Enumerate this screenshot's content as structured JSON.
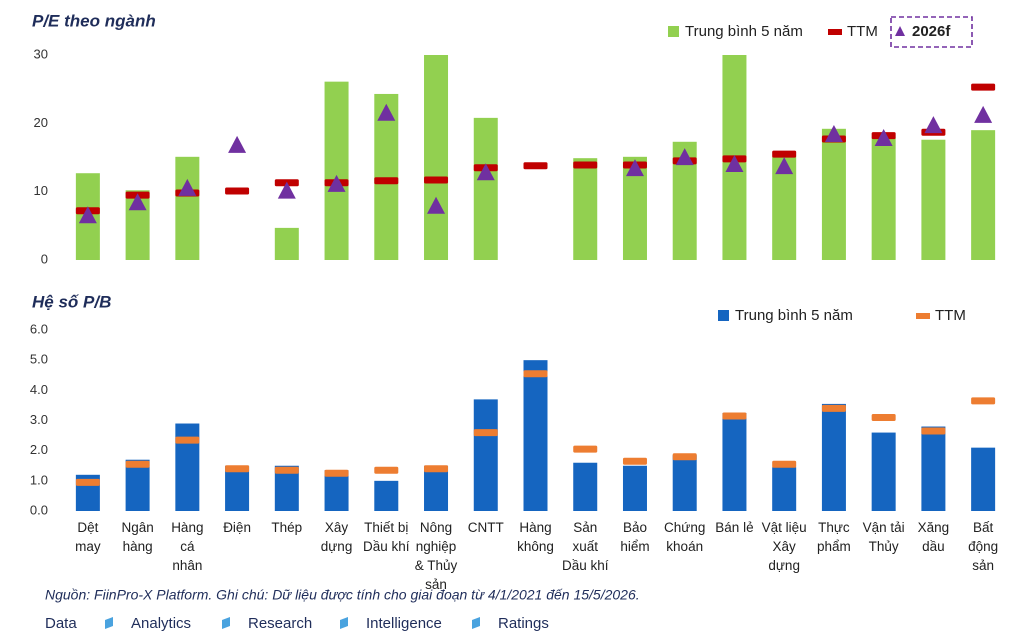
{
  "chart_data": [
    {
      "type": "bar",
      "title": "P/E theo ngành",
      "ylim": [
        0,
        30
      ],
      "yticks": [
        0,
        10,
        20,
        30
      ],
      "grid": false,
      "series": [
        {
          "name": "Trung bình 5 năm",
          "color": "#92d050",
          "marker": "bar",
          "values": [
            12.7,
            10.2,
            15.1,
            null,
            4.7,
            26.1,
            24.3,
            30,
            20.8,
            null,
            14.9,
            15.1,
            17.3,
            30,
            15.1,
            19.2,
            17.9,
            17.6,
            19.0
          ]
        },
        {
          "name": "TTM",
          "color": "#c00000",
          "marker": "dash",
          "values": [
            7.2,
            9.5,
            9.8,
            10.1,
            11.3,
            11.3,
            11.6,
            11.7,
            13.5,
            13.8,
            13.9,
            13.9,
            14.5,
            14.8,
            15.5,
            17.7,
            18.2,
            18.7,
            25.3
          ]
        },
        {
          "name": "2026f",
          "color": "#7030a0",
          "marker": "triangle",
          "values": [
            6.4,
            8.3,
            10.4,
            16.7,
            10.0,
            11.0,
            21.4,
            7.8,
            12.7,
            null,
            null,
            13.3,
            14.9,
            13.9,
            13.6,
            18.3,
            17.7,
            19.6,
            21.1
          ]
        }
      ]
    },
    {
      "type": "bar",
      "title": "Hệ số P/B",
      "categories": [
        "Dệt\nmay",
        "Ngân\nhàng",
        "Hàng\ncá\nnhân",
        "Điện",
        "Thép",
        "Xây\ndựng",
        "Thiết bị\nDầu khí",
        "Nông\nnghiệp\n& Thủy\nsản",
        "CNTT",
        "Hàng\nkhông",
        "Sản\nxuất\nDầu khí",
        "Bảo\nhiểm",
        "Chứng\nkhoán",
        "Bán lẻ",
        "Vật liệu\nXây\ndựng",
        "Thực\nphẩm",
        "Vận tải\nThủy",
        "Xăng\ndầu",
        "Bất\nđộng\nsản"
      ],
      "ylim": [
        0,
        6
      ],
      "yticks": [
        {
          "value": 0,
          "label": "0.0"
        },
        {
          "value": 1,
          "label": "1.0"
        },
        {
          "value": 2,
          "label": "2.0"
        },
        {
          "value": 3,
          "label": "3.0"
        },
        {
          "value": 4,
          "label": "4.0"
        },
        {
          "value": 5,
          "label": "5.0"
        },
        {
          "value": 6,
          "label": "6.0"
        }
      ],
      "grid": false,
      "series": [
        {
          "name": "Trung bình 5 năm",
          "color": "#1565c0",
          "marker": "bar",
          "values": [
            1.2,
            1.7,
            2.9,
            1.5,
            1.5,
            1.35,
            1.0,
            1.5,
            3.7,
            5.0,
            1.6,
            1.5,
            1.85,
            3.25,
            1.45,
            3.55,
            2.6,
            2.8,
            2.1
          ]
        },
        {
          "name": "TTM",
          "color": "#ed7d31",
          "marker": "dash",
          "values": [
            0.95,
            1.55,
            2.35,
            1.4,
            1.35,
            1.25,
            1.35,
            1.4,
            2.6,
            4.55,
            2.05,
            1.65,
            1.8,
            3.15,
            1.55,
            3.4,
            3.1,
            2.65,
            3.65
          ]
        }
      ]
    }
  ],
  "source": "Nguồn: FiinPro-X Platform. Ghi chú: Dữ liệu được tính cho giai đoạn từ 4/1/2021 đến 15/5/2026.",
  "footer_links": [
    "Data",
    "Analytics",
    "Research",
    "Intelligence",
    "Ratings"
  ]
}
